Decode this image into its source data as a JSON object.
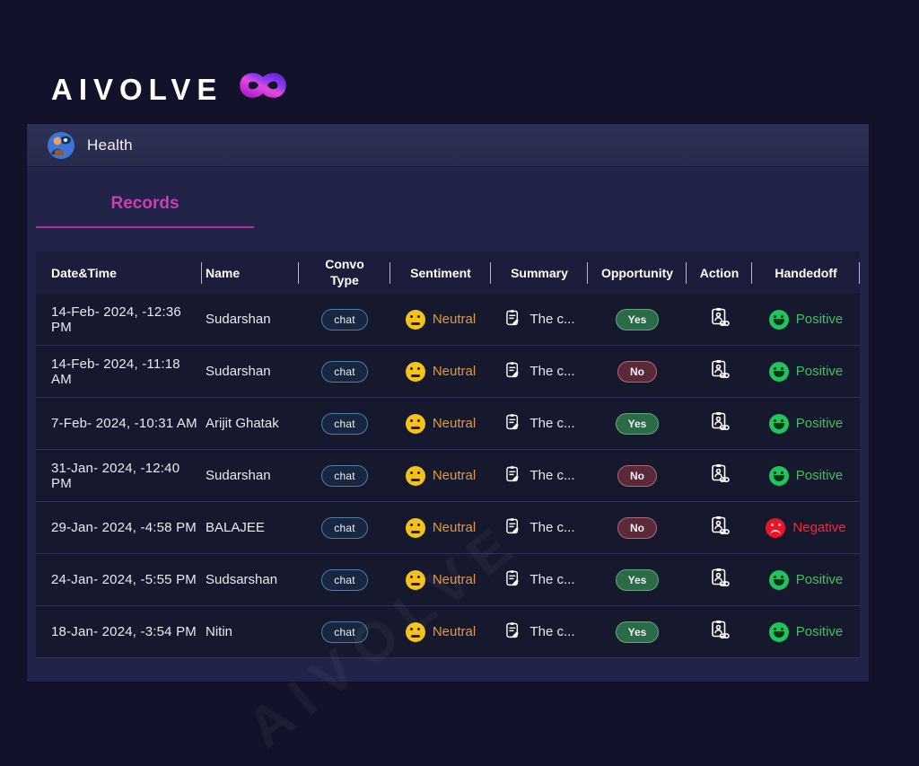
{
  "logo": {
    "text": "AIVOLVE",
    "symbol": "infinity"
  },
  "header": {
    "title": "Health"
  },
  "tabs": {
    "records": "Records"
  },
  "watermark": "AIVOLVE",
  "colors": {
    "accent_magenta": "#cb3db2",
    "sentiment_orange": "#e0993d",
    "positive_green": "#3fbf63",
    "negative_red": "#ff2031",
    "yes_pill": "#2c6b48",
    "no_pill": "#5c2939",
    "panel_bg": "#212348",
    "row_bg": "#16182e"
  },
  "table": {
    "columns": [
      "Date&Time",
      "Name",
      "Convo Type",
      "Sentiment",
      "Summary",
      "Opportunity",
      "Action",
      "Handedoff"
    ],
    "rows": [
      {
        "datetime": "14-Feb- 2024, -12:36 PM",
        "name": "Sudarshan",
        "convo_type": "chat",
        "sentiment": "Neutral",
        "summary": "The c...",
        "opportunity": "Yes",
        "handedoff": "Positive"
      },
      {
        "datetime": "14-Feb- 2024, -11:18 AM",
        "name": "Sudarshan",
        "convo_type": "chat",
        "sentiment": "Neutral",
        "summary": "The c...",
        "opportunity": "No",
        "handedoff": "Positive"
      },
      {
        "datetime": "7-Feb- 2024, -10:31 AM",
        "name": "Arijit Ghatak",
        "convo_type": "chat",
        "sentiment": "Neutral",
        "summary": "The c...",
        "opportunity": "Yes",
        "handedoff": "Positive"
      },
      {
        "datetime": "31-Jan- 2024, -12:40 PM",
        "name": "Sudarshan",
        "convo_type": "chat",
        "sentiment": "Neutral",
        "summary": "The c...",
        "opportunity": "No",
        "handedoff": "Positive"
      },
      {
        "datetime": "29-Jan- 2024, -4:58 PM",
        "name": "BALAJEE",
        "convo_type": "chat",
        "sentiment": "Neutral",
        "summary": "The c...",
        "opportunity": "No",
        "handedoff": "Negative"
      },
      {
        "datetime": "24-Jan- 2024, -5:55 PM",
        "name": "Sudsarshan",
        "convo_type": "chat",
        "sentiment": "Neutral",
        "summary": "The c...",
        "opportunity": "Yes",
        "handedoff": "Positive"
      },
      {
        "datetime": "18-Jan- 2024, -3:54 PM",
        "name": "Nitin",
        "convo_type": "chat",
        "sentiment": "Neutral",
        "summary": "The c...",
        "opportunity": "Yes",
        "handedoff": "Positive"
      }
    ]
  }
}
